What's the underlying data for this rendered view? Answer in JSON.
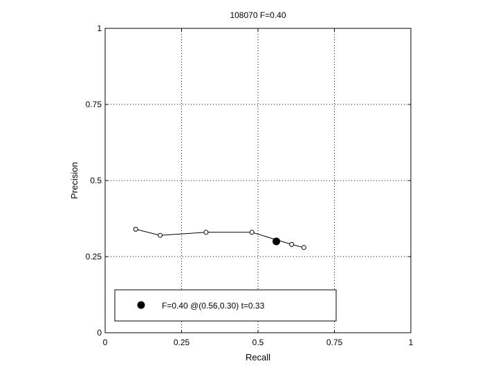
{
  "chart_data": {
    "type": "line",
    "title": "108070 F=0.40",
    "xlabel": "Recall",
    "ylabel": "Precision",
    "xlim": [
      0,
      1
    ],
    "ylim": [
      0,
      1
    ],
    "grid": true,
    "x_ticks": [
      "0",
      "0.25",
      "0.5",
      "0.75",
      "1"
    ],
    "y_ticks": [
      "0",
      "0.25",
      "0.5",
      "0.75",
      "1"
    ],
    "tick_values": [
      0,
      0.25,
      0.5,
      0.75,
      1
    ],
    "series": [
      {
        "marker": "open-circle",
        "color": "#000000",
        "x": [
          0.1,
          0.18,
          0.33,
          0.48,
          0.61,
          0.65
        ],
        "y": [
          0.34,
          0.32,
          0.33,
          0.33,
          0.29,
          0.28
        ]
      }
    ],
    "highlight_point": {
      "x": 0.56,
      "y": 0.3,
      "marker": "filled-circle",
      "color": "#000000"
    },
    "legend": {
      "placement": "bottom-left",
      "entries": [
        "F=0.40 @(0.56,0.30) t=0.33"
      ]
    }
  }
}
